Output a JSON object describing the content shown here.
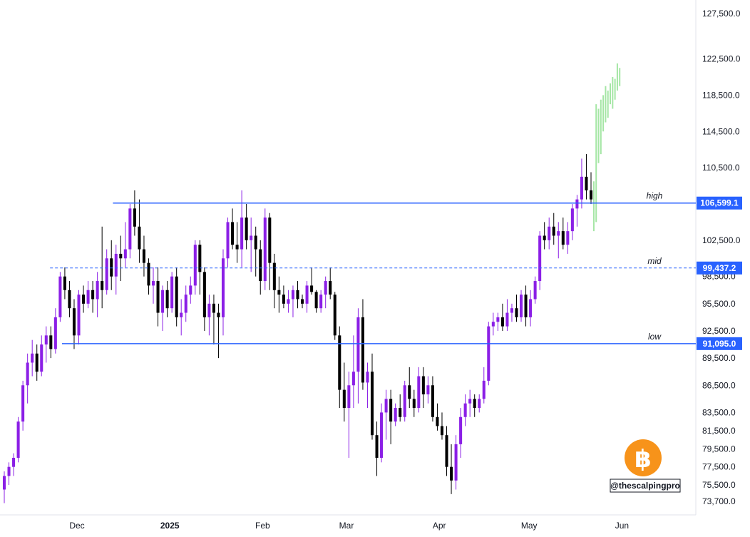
{
  "chart_data": {
    "type": "candlestick",
    "y_axis": {
      "position": "right",
      "range": [
        72500,
        129000
      ],
      "ticks": [
        "127,500.0",
        "122,500.0",
        "118,500.0",
        "114,500.0",
        "110,500.0",
        "102,500.0",
        "98,500.0",
        "95,500.0",
        "92,500.0",
        "89,500.0",
        "86,500.0",
        "83,500.0",
        "81,500.0",
        "79,500.0",
        "77,500.0",
        "75,500.0",
        "73,700.0"
      ],
      "tick_values": [
        127500,
        122500,
        118500,
        114500,
        110500,
        102500,
        98500,
        95500,
        92500,
        89500,
        86500,
        83500,
        81500,
        79500,
        77500,
        75500,
        73700
      ]
    },
    "x_axis": {
      "labels": [
        {
          "text": "Dec",
          "date": "2024-12-01",
          "bold": false
        },
        {
          "text": "2025",
          "date": "2025-01-01",
          "bold": true
        },
        {
          "text": "Feb",
          "date": "2025-02-01",
          "bold": false
        },
        {
          "text": "Mar",
          "date": "2025-03-01",
          "bold": false
        },
        {
          "text": "Apr",
          "date": "2025-04-01",
          "bold": false
        },
        {
          "text": "May",
          "date": "2025-05-01",
          "bold": false
        },
        {
          "text": "Jun",
          "date": "2025-06-01",
          "bold": false
        }
      ],
      "start_date": "2024-11-06",
      "end_date": "2025-06-10"
    },
    "levels": [
      {
        "name": "high",
        "value": 106599.1,
        "label": "106,599.1",
        "style": "solid",
        "start_date": "2024-12-13"
      },
      {
        "name": "mid",
        "value": 99437.2,
        "label": "99,437.2",
        "style": "dashed",
        "start_date": "2024-11-22"
      },
      {
        "name": "low",
        "value": 91095.0,
        "label": "91,095.0",
        "style": "solid",
        "start_date": "2024-11-26"
      }
    ],
    "projection": {
      "color": "#a5e6a5",
      "bars": [
        [
          103500,
          109000
        ],
        [
          104500,
          117500
        ],
        [
          111000,
          117000
        ],
        [
          112000,
          118000
        ],
        [
          114500,
          118500
        ],
        [
          115500,
          119500
        ],
        [
          116000,
          119000
        ],
        [
          117500,
          119800
        ],
        [
          117000,
          120500
        ],
        [
          118000,
          120300
        ],
        [
          119000,
          122000
        ],
        [
          119500,
          121500
        ]
      ]
    },
    "candles": [
      [
        75000,
        77000,
        73500,
        76500
      ],
      [
        76500,
        78000,
        75500,
        77500
      ],
      [
        77500,
        79000,
        76500,
        78500
      ],
      [
        78500,
        83000,
        78000,
        82500
      ],
      [
        82500,
        87000,
        81500,
        86500
      ],
      [
        86500,
        90000,
        84500,
        89000
      ],
      [
        89000,
        91500,
        87500,
        90000
      ],
      [
        90000,
        91000,
        87000,
        88000
      ],
      [
        88000,
        92000,
        87500,
        91000
      ],
      [
        91000,
        93000,
        89000,
        92000
      ],
      [
        92000,
        93000,
        89500,
        90500
      ],
      [
        90500,
        95000,
        90000,
        94000
      ],
      [
        94000,
        99000,
        93500,
        98500
      ],
      [
        98500,
        99500,
        96000,
        97000
      ],
      [
        97000,
        98000,
        94000,
        95000
      ],
      [
        95000,
        96000,
        90500,
        92000
      ],
      [
        92000,
        97000,
        91000,
        96500
      ],
      [
        96500,
        97500,
        94500,
        95500
      ],
      [
        95500,
        98000,
        95000,
        97000
      ],
      [
        97000,
        98000,
        94500,
        96000
      ],
      [
        96000,
        99000,
        94000,
        98000
      ],
      [
        98000,
        104000,
        95000,
        97000
      ],
      [
        97000,
        101500,
        96500,
        100500
      ],
      [
        100500,
        102500,
        97000,
        98500
      ],
      [
        98500,
        102000,
        96500,
        101000
      ],
      [
        101000,
        103000,
        98000,
        100500
      ],
      [
        100500,
        104500,
        99500,
        101500
      ],
      [
        101500,
        106500,
        100500,
        106000
      ],
      [
        106000,
        108000,
        103000,
        104000
      ],
      [
        104000,
        107000,
        100000,
        101500
      ],
      [
        101500,
        103000,
        98500,
        100000
      ],
      [
        100000,
        100500,
        96500,
        97500
      ],
      [
        97500,
        99500,
        95500,
        98000
      ],
      [
        98000,
        99500,
        93000,
        94500
      ],
      [
        94500,
        97500,
        92500,
        97000
      ],
      [
        97000,
        98000,
        94000,
        95000
      ],
      [
        95000,
        99000,
        94500,
        98500
      ],
      [
        98500,
        99500,
        93000,
        94000
      ],
      [
        94000,
        96000,
        92000,
        94500
      ],
      [
        94500,
        97500,
        93500,
        96500
      ],
      [
        96500,
        98500,
        95500,
        97500
      ],
      [
        97500,
        102500,
        96500,
        102000
      ],
      [
        102000,
        102500,
        96500,
        99000
      ],
      [
        99000,
        99500,
        92500,
        94000
      ],
      [
        94000,
        96500,
        92000,
        95500
      ],
      [
        95500,
        96500,
        91000,
        94500
      ],
      [
        94500,
        95500,
        89500,
        94000
      ],
      [
        94000,
        101500,
        92000,
        100500
      ],
      [
        100500,
        105000,
        99500,
        104500
      ],
      [
        104500,
        106000,
        101500,
        102000
      ],
      [
        102000,
        104500,
        100000,
        101500
      ],
      [
        101500,
        108000,
        99500,
        105000
      ],
      [
        105000,
        106500,
        101500,
        102500
      ],
      [
        102500,
        105000,
        99000,
        103000
      ],
      [
        103000,
        104000,
        98500,
        101500
      ],
      [
        101500,
        102500,
        96500,
        98000
      ],
      [
        98000,
        106000,
        97000,
        105000
      ],
      [
        105000,
        105500,
        97000,
        100000
      ],
      [
        100000,
        101000,
        95000,
        97000
      ],
      [
        97000,
        98500,
        94500,
        96500
      ],
      [
        96500,
        97500,
        95000,
        95500
      ],
      [
        95500,
        97000,
        94500,
        96000
      ],
      [
        96000,
        97500,
        94000,
        97000
      ],
      [
        97000,
        98000,
        95000,
        96000
      ],
      [
        96000,
        96500,
        95000,
        95500
      ],
      [
        95500,
        98000,
        94500,
        97500
      ],
      [
        97500,
        99500,
        96500,
        96800
      ],
      [
        96800,
        97000,
        94500,
        95000
      ],
      [
        95000,
        97000,
        94500,
        96500
      ],
      [
        96500,
        98500,
        95000,
        98000
      ],
      [
        98000,
        99500,
        96000,
        96500
      ],
      [
        96500,
        96800,
        91500,
        92000
      ],
      [
        92000,
        93000,
        84000,
        86000
      ],
      [
        86000,
        89000,
        82500,
        84000
      ],
      [
        84000,
        88000,
        78500,
        86500
      ],
      [
        86500,
        92000,
        84000,
        88000
      ],
      [
        88000,
        95000,
        84500,
        94000
      ],
      [
        94000,
        96000,
        86000,
        86800
      ],
      [
        86800,
        89000,
        84000,
        88000
      ],
      [
        88000,
        90000,
        80500,
        81000
      ],
      [
        81000,
        82500,
        76500,
        78500
      ],
      [
        78500,
        84500,
        78000,
        83500
      ],
      [
        83500,
        86000,
        80500,
        85000
      ],
      [
        85000,
        86000,
        80000,
        82500
      ],
      [
        82500,
        84500,
        82000,
        84000
      ],
      [
        84000,
        85500,
        82500,
        83000
      ],
      [
        83000,
        87000,
        82500,
        86500
      ],
      [
        86500,
        88500,
        84000,
        85000
      ],
      [
        85000,
        86000,
        83000,
        84000
      ],
      [
        84000,
        88500,
        83500,
        87500
      ],
      [
        87500,
        88500,
        84000,
        85500
      ],
      [
        85500,
        87500,
        84500,
        86500
      ],
      [
        86500,
        87500,
        82500,
        83000
      ],
      [
        83000,
        84500,
        81500,
        82000
      ],
      [
        82000,
        83500,
        80500,
        81000
      ],
      [
        81000,
        82000,
        76500,
        77500
      ],
      [
        77500,
        80000,
        74500,
        76000
      ],
      [
        76000,
        81000,
        75000,
        80000
      ],
      [
        80000,
        84000,
        78500,
        83000
      ],
      [
        83000,
        85500,
        82000,
        84500
      ],
      [
        84500,
        86000,
        83000,
        85000
      ],
      [
        85000,
        85500,
        83000,
        84000
      ],
      [
        84000,
        85500,
        83500,
        85000
      ],
      [
        85000,
        88500,
        84500,
        87000
      ],
      [
        87000,
        93500,
        86500,
        93000
      ],
      [
        93000,
        94500,
        92000,
        93500
      ],
      [
        93500,
        94500,
        92500,
        94000
      ],
      [
        94000,
        95500,
        92500,
        93000
      ],
      [
        93000,
        96000,
        92500,
        94500
      ],
      [
        94500,
        95500,
        93500,
        95000
      ],
      [
        95000,
        96500,
        93500,
        94000
      ],
      [
        94000,
        97000,
        93500,
        96500
      ],
      [
        96500,
        97500,
        93000,
        94000
      ],
      [
        94000,
        97000,
        93000,
        96000
      ],
      [
        96000,
        98500,
        95500,
        98000
      ],
      [
        98000,
        103500,
        97000,
        103000
      ],
      [
        103000,
        104500,
        101500,
        102500
      ],
      [
        102500,
        105000,
        101500,
        104000
      ],
      [
        104000,
        105500,
        102000,
        103000
      ],
      [
        103000,
        104500,
        100500,
        103500
      ],
      [
        103500,
        105000,
        101500,
        102000
      ],
      [
        102000,
        104500,
        101000,
        103500
      ],
      [
        103500,
        106500,
        102500,
        106000
      ],
      [
        106000,
        107500,
        104000,
        107000
      ],
      [
        107000,
        111500,
        106000,
        109500
      ],
      [
        109500,
        112000,
        107000,
        108000
      ],
      [
        108000,
        110000,
        106500,
        107000
      ]
    ]
  },
  "badges": {
    "high": "106,599.1",
    "mid": "99,437.2",
    "low": "91,095.0"
  },
  "annotations": {
    "high": "high",
    "mid": "mid",
    "low": "low"
  },
  "watermark": {
    "handle": "@thescalpingpro",
    "logo_glyph": "฿",
    "logo_color": "#f7931a"
  },
  "colors": {
    "bull": "#8b1fe6",
    "bear": "#000000",
    "level_line": "#2962ff",
    "axis_text": "#131722",
    "projection": "#a5e6a5"
  }
}
